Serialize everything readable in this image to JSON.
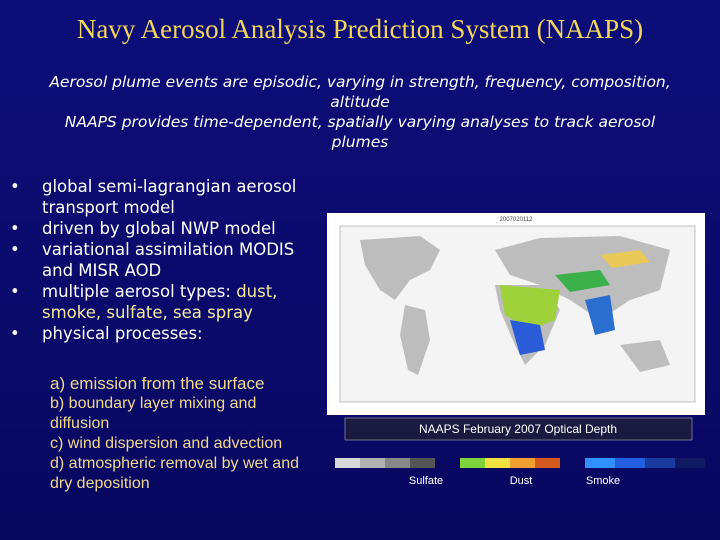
{
  "title": "Navy Aerosol Analysis Prediction System (NAAPS)",
  "subtitle": [
    "Aerosol plume events are episodic, varying in strength, frequency, composition, altitude",
    "NAAPS provides time-dependent, spatially varying analyses to track aerosol plumes"
  ],
  "bullets": [
    {
      "text": "global semi-lagrangian aerosol transport model"
    },
    {
      "text": "driven by global NWP model"
    },
    {
      "text": "variational assimilation MODIS and MISR AOD"
    },
    {
      "text": "multiple aerosol types: ",
      "highlight": "dust, smoke, sulfate, sea spray"
    },
    {
      "text": "physical processes:"
    }
  ],
  "processes": [
    "a) emission from the surface",
    "b) boundary layer mixing and diffusion",
    "c) wind dispersion and advection",
    "d) atmospheric removal by wet and dry deposition"
  ],
  "figure": {
    "map_date": "2007020112",
    "caption": "NAAPS February 2007 Optical Depth",
    "legend": [
      "Sulfate",
      "Dust",
      "Smoke"
    ]
  }
}
